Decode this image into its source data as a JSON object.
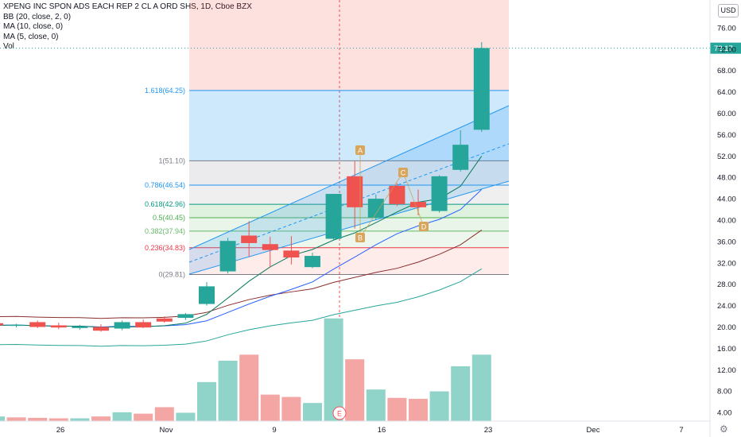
{
  "legend": [
    "XPENG INC SPON ADS EACH REP 2 CL A ORD SHS, 1D, Cboe BZX",
    "BB (20, close, 2, 0)",
    "MA (10, close, 0)",
    "MA (5, close, 0)",
    "Vol"
  ],
  "currency_button": "USD",
  "last_price_label": "72.17",
  "earnings_marker": "E",
  "colors": {
    "up": "#26a69a",
    "down": "#ef5350",
    "volUp": "#8fd3c9",
    "volDown": "#f4a6a4",
    "fibBlue": "#2196f3"
  },
  "chart_data": {
    "type": "candlestick",
    "y_ticks": [
      76.0,
      72.0,
      68.0,
      64.0,
      60.0,
      56.0,
      52.0,
      48.0,
      44.0,
      40.0,
      36.0,
      32.0,
      28.0,
      24.0,
      20.0,
      16.0,
      12.0,
      8.0,
      4.0
    ],
    "x_ticks": [
      "26",
      "Nov",
      "9",
      "16",
      "23",
      "Dec",
      "7"
    ],
    "candles": [
      {
        "o": 20.7,
        "h": 21.1,
        "l": 20.0,
        "c": 20.3
      },
      {
        "o": 20.2,
        "h": 20.6,
        "l": 19.9,
        "c": 20.4
      },
      {
        "o": 20.9,
        "h": 21.2,
        "l": 19.8,
        "c": 20.0
      },
      {
        "o": 20.3,
        "h": 20.8,
        "l": 19.6,
        "c": 19.9
      },
      {
        "o": 19.8,
        "h": 20.4,
        "l": 19.5,
        "c": 20.1
      },
      {
        "o": 20.0,
        "h": 20.5,
        "l": 19.1,
        "c": 19.3
      },
      {
        "o": 19.7,
        "h": 21.2,
        "l": 19.4,
        "c": 20.9
      },
      {
        "o": 20.9,
        "h": 21.4,
        "l": 19.8,
        "c": 19.9
      },
      {
        "o": 21.6,
        "h": 22.0,
        "l": 20.8,
        "c": 21.0
      },
      {
        "o": 21.7,
        "h": 22.6,
        "l": 21.3,
        "c": 22.4
      },
      {
        "o": 24.3,
        "h": 28.4,
        "l": 24.0,
        "c": 27.6
      },
      {
        "o": 30.4,
        "h": 36.7,
        "l": 30.0,
        "c": 36.1
      },
      {
        "o": 37.1,
        "h": 39.8,
        "l": 33.1,
        "c": 35.7
      },
      {
        "o": 35.5,
        "h": 36.9,
        "l": 31.2,
        "c": 34.4
      },
      {
        "o": 34.3,
        "h": 37.0,
        "l": 31.7,
        "c": 33.0
      },
      {
        "o": 31.2,
        "h": 33.9,
        "l": 31.0,
        "c": 33.3
      },
      {
        "o": 36.5,
        "h": 44.9,
        "l": 36.3,
        "c": 44.9
      },
      {
        "o": 48.2,
        "h": 51.0,
        "l": 38.4,
        "c": 42.4
      },
      {
        "o": 40.5,
        "h": 44.8,
        "l": 40.1,
        "c": 44.0
      },
      {
        "o": 46.4,
        "h": 46.9,
        "l": 42.6,
        "c": 43.0
      },
      {
        "o": 43.4,
        "h": 45.7,
        "l": 40.9,
        "c": 42.4
      },
      {
        "o": 41.7,
        "h": 48.4,
        "l": 41.4,
        "c": 48.2
      },
      {
        "o": 49.4,
        "h": 56.8,
        "l": 49.1,
        "c": 54.1
      },
      {
        "o": 56.9,
        "h": 73.3,
        "l": 56.5,
        "c": 72.2
      }
    ],
    "volume": [
      {
        "v": 1.0,
        "up": true
      },
      {
        "v": 0.8,
        "up": false
      },
      {
        "v": 0.7,
        "up": false
      },
      {
        "v": 0.6,
        "up": false
      },
      {
        "v": 0.6,
        "up": true
      },
      {
        "v": 1.0,
        "up": false
      },
      {
        "v": 1.9,
        "up": true
      },
      {
        "v": 1.6,
        "up": false
      },
      {
        "v": 3.0,
        "up": false
      },
      {
        "v": 1.8,
        "up": true
      },
      {
        "v": 8.4,
        "up": true
      },
      {
        "v": 13.0,
        "up": true
      },
      {
        "v": 14.3,
        "up": false
      },
      {
        "v": 5.7,
        "up": false
      },
      {
        "v": 5.2,
        "up": false
      },
      {
        "v": 3.9,
        "up": true
      },
      {
        "v": 22.1,
        "up": true
      },
      {
        "v": 13.3,
        "up": false
      },
      {
        "v": 6.8,
        "up": true
      },
      {
        "v": 5.0,
        "up": false
      },
      {
        "v": 4.8,
        "up": false
      },
      {
        "v": 6.4,
        "up": true
      },
      {
        "v": 11.8,
        "up": true
      },
      {
        "v": 14.3,
        "up": true
      }
    ],
    "fib_levels": [
      {
        "ratio": "1.618",
        "price": 64.25,
        "label": "1.618(64.25)"
      },
      {
        "ratio": "1",
        "price": 51.1,
        "label": "1(51.10)"
      },
      {
        "ratio": "0.786",
        "price": 46.54,
        "label": "0.786(46.54)"
      },
      {
        "ratio": "0.618",
        "price": 42.96,
        "label": "0.618(42.96)"
      },
      {
        "ratio": "0.5",
        "price": 40.45,
        "label": "0.5(40.45)"
      },
      {
        "ratio": "0.382",
        "price": 37.94,
        "label": "0.382(37.94)"
      },
      {
        "ratio": "0.236",
        "price": 34.83,
        "label": "0.236(34.83)"
      },
      {
        "ratio": "0",
        "price": 29.81,
        "label": "0(29.81)"
      }
    ],
    "pattern_points": [
      "A",
      "B",
      "C",
      "D"
    ],
    "last_price": 72.17
  }
}
